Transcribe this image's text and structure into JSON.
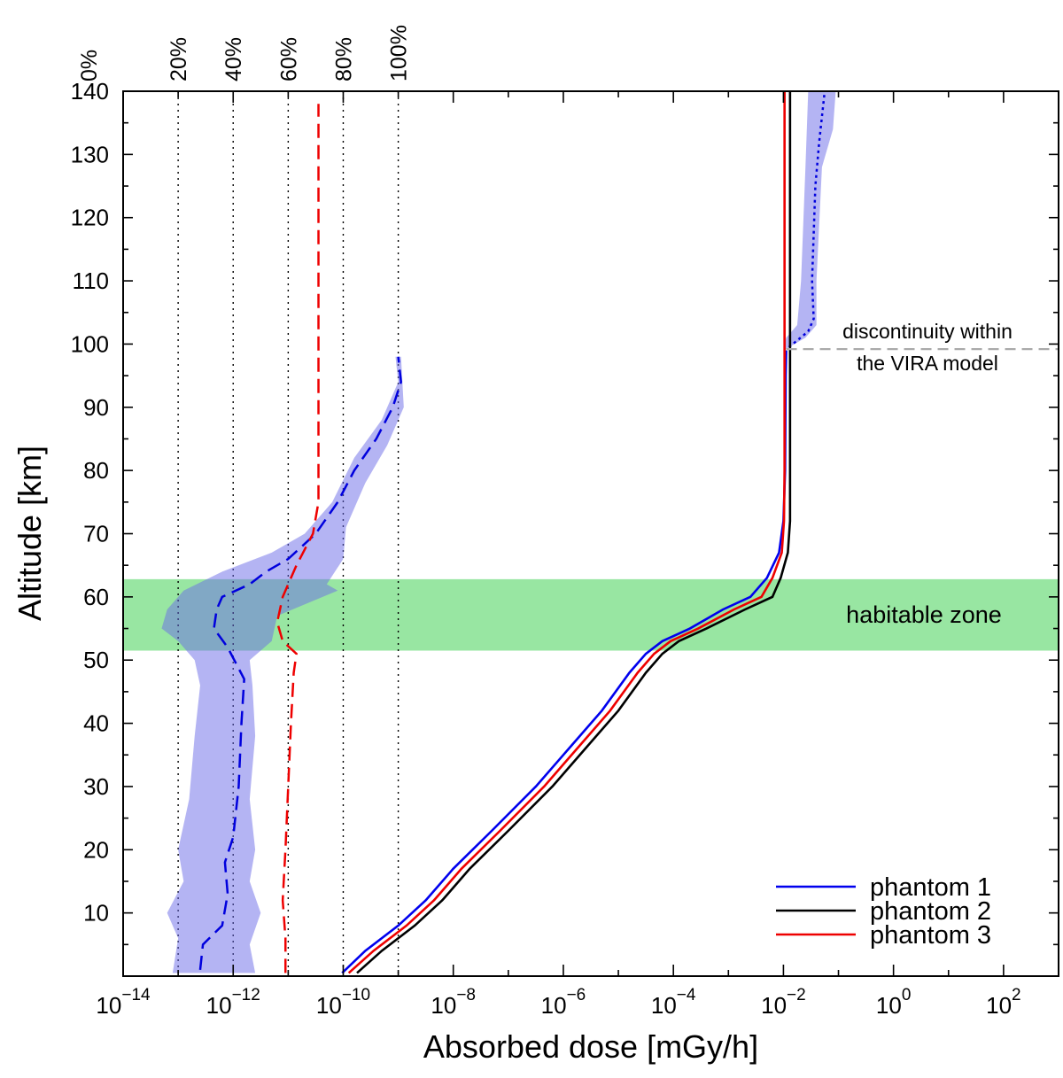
{
  "chart_data": {
    "type": "line",
    "xlabel": "Absorbed dose [mGy/h]",
    "ylabel": "Altitude [km]",
    "xscale": "log",
    "xlim_exponent": [
      -14,
      3
    ],
    "ylim": [
      0,
      140
    ],
    "x_ticks": [
      {
        "base": "10",
        "exp": "−14",
        "value_exp": -14
      },
      {
        "base": "10",
        "exp": "−12",
        "value_exp": -12
      },
      {
        "base": "10",
        "exp": "−10",
        "value_exp": -10
      },
      {
        "base": "10",
        "exp": "−8",
        "value_exp": -8
      },
      {
        "base": "10",
        "exp": "−6",
        "value_exp": -6
      },
      {
        "base": "10",
        "exp": "−4",
        "value_exp": -4
      },
      {
        "base": "10",
        "exp": "−2",
        "value_exp": -2
      },
      {
        "base": "10",
        "exp": "0",
        "value_exp": 0
      },
      {
        "base": "10",
        "exp": "2",
        "value_exp": 2
      }
    ],
    "y_ticks": [
      "10",
      "20",
      "30",
      "40",
      "50",
      "60",
      "70",
      "80",
      "90",
      "100",
      "110",
      "120",
      "130",
      "140"
    ],
    "y_tick_values": [
      10,
      20,
      30,
      40,
      50,
      60,
      70,
      80,
      90,
      100,
      110,
      120,
      130,
      140
    ],
    "top_percent_labels": [
      {
        "label": "0%",
        "value_exp": -14.63
      },
      {
        "label": "20%",
        "value_exp": -13
      },
      {
        "label": "40%",
        "value_exp": -12
      },
      {
        "label": "60%",
        "value_exp": -11
      },
      {
        "label": "80%",
        "value_exp": -10
      },
      {
        "label": "100%",
        "value_exp": -9
      }
    ],
    "series": [
      {
        "name": "phantom 1",
        "color": "#0000ee",
        "points": [
          [
            -10.02,
            0.5
          ],
          [
            -9.6,
            4
          ],
          [
            -9.0,
            8
          ],
          [
            -8.5,
            12
          ],
          [
            -8.0,
            17
          ],
          [
            -7.3,
            23
          ],
          [
            -6.5,
            30
          ],
          [
            -5.9,
            36
          ],
          [
            -5.3,
            42
          ],
          [
            -4.8,
            48
          ],
          [
            -4.5,
            51
          ],
          [
            -4.2,
            53
          ],
          [
            -3.7,
            55
          ],
          [
            -3.1,
            58
          ],
          [
            -2.6,
            60
          ],
          [
            -2.3,
            63
          ],
          [
            -2.08,
            67
          ],
          [
            -2.0,
            72
          ],
          [
            -1.97,
            80
          ],
          [
            -1.96,
            95
          ],
          [
            -1.95,
            99
          ]
        ]
      },
      {
        "name": "phantom 2",
        "color": "#000000",
        "points": [
          [
            -9.75,
            0.5
          ],
          [
            -9.3,
            4
          ],
          [
            -8.7,
            8
          ],
          [
            -8.2,
            12
          ],
          [
            -7.7,
            17
          ],
          [
            -7.0,
            23
          ],
          [
            -6.2,
            30
          ],
          [
            -5.6,
            36
          ],
          [
            -5.0,
            42
          ],
          [
            -4.5,
            48
          ],
          [
            -4.2,
            51
          ],
          [
            -3.9,
            53
          ],
          [
            -3.4,
            55
          ],
          [
            -2.7,
            58
          ],
          [
            -2.2,
            60
          ],
          [
            -2.05,
            63
          ],
          [
            -1.92,
            67
          ],
          [
            -1.88,
            72
          ],
          [
            -1.88,
            80
          ],
          [
            -1.88,
            110
          ],
          [
            -1.88,
            140
          ]
        ]
      },
      {
        "name": "phantom 3",
        "color": "#ee0000",
        "points": [
          [
            -9.9,
            0.5
          ],
          [
            -9.45,
            4
          ],
          [
            -8.85,
            8
          ],
          [
            -8.35,
            12
          ],
          [
            -7.85,
            17
          ],
          [
            -7.15,
            23
          ],
          [
            -6.35,
            30
          ],
          [
            -5.75,
            36
          ],
          [
            -5.15,
            42
          ],
          [
            -4.65,
            48
          ],
          [
            -4.35,
            51
          ],
          [
            -4.05,
            53
          ],
          [
            -3.55,
            55
          ],
          [
            -2.9,
            58
          ],
          [
            -2.4,
            60
          ],
          [
            -2.2,
            63
          ],
          [
            -2.03,
            67
          ],
          [
            -1.99,
            72
          ],
          [
            -1.98,
            80
          ],
          [
            -1.98,
            110
          ],
          [
            -1.98,
            140
          ]
        ]
      }
    ],
    "legend_position": "bottom-right",
    "annotations": [
      {
        "text": "discontinuity within",
        "line": 1
      },
      {
        "text": "the VIRA model",
        "line": 2
      }
    ],
    "discontinuity_altitude": 99.2,
    "habitable_zone": {
      "label": "habitable zone",
      "y_range": [
        51.5,
        62.8
      ],
      "color": "#98e6a2"
    }
  }
}
